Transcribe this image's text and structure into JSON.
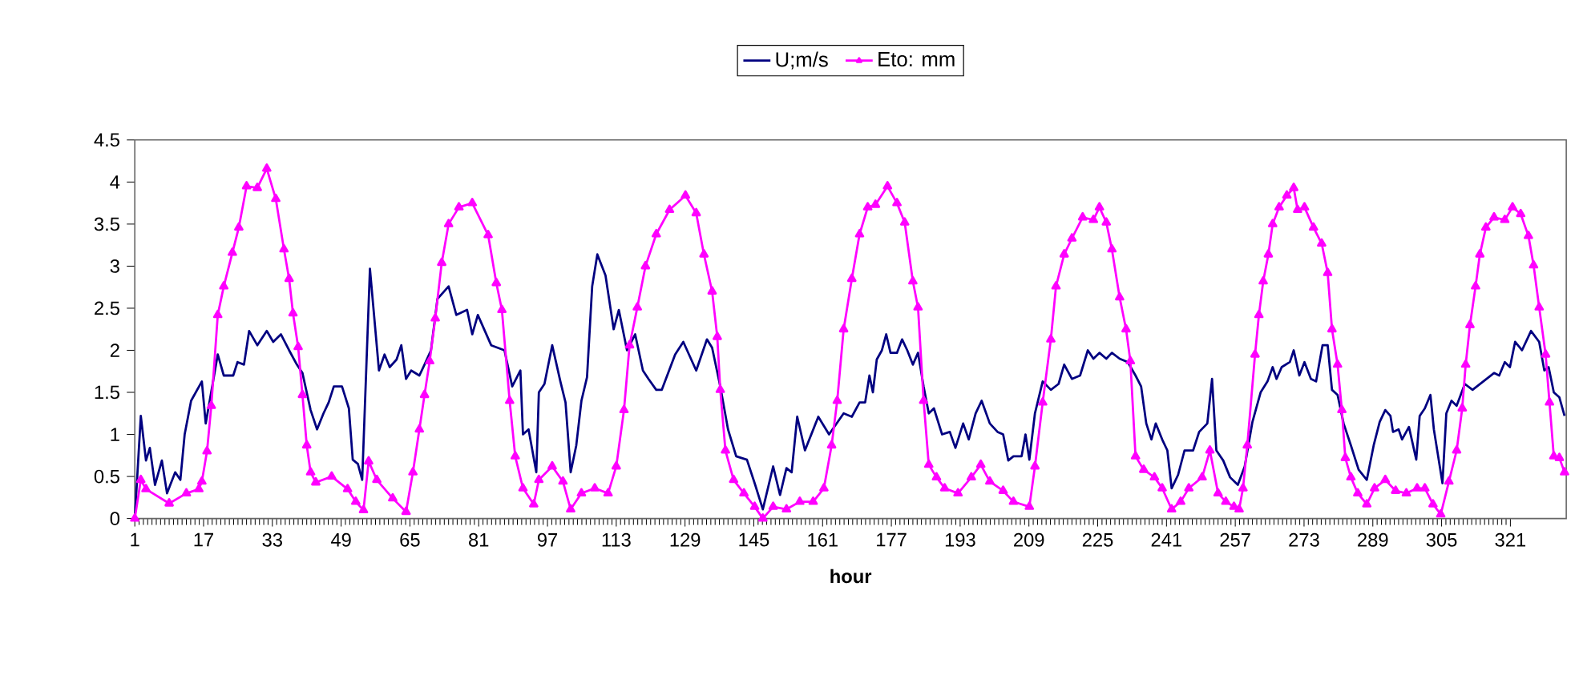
{
  "chart_data": {
    "type": "line",
    "xlabel": "hour",
    "xlim": [
      1,
      334
    ],
    "xticks": [
      1,
      17,
      33,
      49,
      65,
      81,
      97,
      113,
      129,
      145,
      161,
      177,
      193,
      209,
      225,
      241,
      257,
      273,
      289,
      305,
      321
    ],
    "ylim": [
      0,
      4.5
    ],
    "yticks": [
      0,
      0.5,
      1,
      1.5,
      2,
      2.5,
      3,
      3.5,
      4,
      4.5
    ],
    "legend": "top",
    "series": [
      {
        "name": "U;m/s",
        "color": "#000080",
        "marker": "none",
        "x": [
          1,
          2.4,
          3.6,
          4.5,
          5.7,
          7.3,
          8.5,
          10.4,
          11.6,
          12.6,
          14.1,
          16.6,
          17.5,
          20.3,
          21.7,
          23.9,
          24.9,
          26.4,
          27.6,
          29.5,
          31.7,
          33.2,
          35,
          36.9,
          38.7,
          40,
          41.9,
          43.4,
          44.9,
          46.1,
          47.3,
          49.2,
          50.8,
          51.7,
          52.9,
          53.9,
          55.7,
          57.8,
          59.1,
          60.3,
          61.9,
          63,
          64.1,
          65.3,
          67.2,
          68.4,
          69.9,
          71.4,
          74,
          75.8,
          78.3,
          79.5,
          80.8,
          83.9,
          87,
          88.8,
          90.7,
          91.3,
          92.6,
          94.4,
          95,
          96.3,
          98.1,
          100,
          101.2,
          102.4,
          103.7,
          104.9,
          106.2,
          107.4,
          108.6,
          110.5,
          112.4,
          113.6,
          115.5,
          117.4,
          119.2,
          120.5,
          122.3,
          123.6,
          126.7,
          128.6,
          131.6,
          134.1,
          135.3,
          137.2,
          139,
          140.9,
          143.4,
          145.2,
          147.1,
          149.5,
          151.1,
          152.6,
          153.8,
          155.1,
          156.9,
          160,
          162.5,
          165.9,
          167.8,
          169.6,
          170.9,
          171.9,
          172.7,
          173.6,
          174.8,
          175.8,
          176.8,
          178.3,
          179.5,
          180.7,
          182,
          183.2,
          184.5,
          185.7,
          186.9,
          188.8,
          190.6,
          191.9,
          193.7,
          195,
          196.6,
          198,
          199.9,
          201.7,
          203,
          204.2,
          205.4,
          207.3,
          208.2,
          209.1,
          210.4,
          212.2,
          214.1,
          215.9,
          217.2,
          219,
          220.9,
          222.7,
          224,
          225.4,
          227,
          228.3,
          230.1,
          232,
          233.8,
          235.1,
          236.3,
          237.5,
          238.5,
          240,
          241.2,
          242.2,
          243.7,
          245.2,
          247.2,
          248.6,
          250.5,
          251.6,
          252.6,
          254.2,
          255.8,
          257.6,
          259.2,
          261,
          262.9,
          264.5,
          265.7,
          266.6,
          267.8,
          269.7,
          270.6,
          271.9,
          273.1,
          274.6,
          275.8,
          277.3,
          278.5,
          279.5,
          280.8,
          282.2,
          283.9,
          285.7,
          287.6,
          289.2,
          290.6,
          291.9,
          293.1,
          293.7,
          295,
          295.8,
          297.4,
          299.1,
          299.9,
          301.1,
          302.4,
          303.2,
          304.2,
          305.2,
          306.1,
          307.3,
          308.5,
          310.4,
          312.2,
          314.7,
          317.2,
          318.4,
          319.7,
          320.9,
          322.1,
          323.7,
          325.8,
          327.7,
          328.9,
          329.9,
          331.1,
          332.4,
          333.6
        ],
        "values": [
          0,
          1.22,
          0.69,
          0.84,
          0.4,
          0.69,
          0.3,
          0.55,
          0.46,
          1.0,
          1.4,
          1.63,
          1.13,
          1.95,
          1.7,
          1.7,
          1.86,
          1.83,
          2.23,
          2.06,
          2.23,
          2.1,
          2.19,
          2.0,
          1.83,
          1.73,
          1.29,
          1.06,
          1.25,
          1.38,
          1.57,
          1.57,
          1.31,
          0.7,
          0.65,
          0.46,
          2.97,
          1.76,
          1.95,
          1.8,
          1.89,
          2.06,
          1.66,
          1.76,
          1.7,
          1.83,
          2.0,
          2.61,
          2.76,
          2.42,
          2.48,
          2.19,
          2.42,
          2.06,
          2.0,
          1.57,
          1.76,
          1.0,
          1.06,
          0.55,
          1.5,
          1.6,
          2.06,
          1.63,
          1.38,
          0.55,
          0.87,
          1.4,
          1.68,
          2.76,
          3.14,
          2.89,
          2.25,
          2.48,
          2.0,
          2.19,
          1.76,
          1.66,
          1.53,
          1.53,
          1.95,
          2.1,
          1.76,
          2.13,
          2.03,
          1.57,
          1.06,
          0.74,
          0.7,
          0.42,
          0.11,
          0.62,
          0.28,
          0.6,
          0.55,
          1.21,
          0.81,
          1.21,
          1.0,
          1.25,
          1.21,
          1.38,
          1.38,
          1.7,
          1.5,
          1.89,
          2.0,
          2.19,
          1.97,
          1.97,
          2.13,
          2.0,
          1.83,
          1.97,
          1.57,
          1.25,
          1.31,
          1.0,
          1.03,
          0.84,
          1.13,
          0.94,
          1.25,
          1.4,
          1.13,
          1.03,
          1.0,
          0.69,
          0.74,
          0.74,
          1.0,
          0.7,
          1.25,
          1.63,
          1.53,
          1.6,
          1.83,
          1.66,
          1.7,
          2.0,
          1.9,
          1.97,
          1.9,
          1.97,
          1.9,
          1.86,
          1.7,
          1.57,
          1.13,
          0.94,
          1.13,
          0.94,
          0.81,
          0.36,
          0.52,
          0.81,
          0.81,
          1.03,
          1.13,
          1.66,
          0.81,
          0.69,
          0.49,
          0.4,
          0.62,
          1.15,
          1.5,
          1.63,
          1.8,
          1.66,
          1.8,
          1.86,
          2.0,
          1.7,
          1.86,
          1.66,
          1.63,
          2.06,
          2.06,
          1.53,
          1.47,
          1.13,
          0.87,
          0.58,
          0.46,
          0.87,
          1.15,
          1.29,
          1.22,
          1.03,
          1.06,
          0.94,
          1.09,
          0.7,
          1.22,
          1.31,
          1.47,
          1.06,
          0.74,
          0.42,
          1.25,
          1.4,
          1.34,
          1.6,
          1.53,
          1.63,
          1.73,
          1.7,
          1.86,
          1.8,
          2.1,
          2.0,
          2.23,
          2.1,
          1.76,
          1.8,
          1.5,
          1.44,
          1.22
        ]
      },
      {
        "name": "Eto: mm",
        "color": "#ff00ff",
        "marker": "triangle",
        "x": [
          1,
          2.4,
          3.6,
          9,
          13,
          15.9,
          16.6,
          17.8,
          18.8,
          20.3,
          21.7,
          23.7,
          25.2,
          27,
          29.5,
          31.7,
          33.8,
          35.7,
          36.9,
          37.8,
          39,
          40,
          41,
          41.9,
          43.1,
          46.8,
          50.5,
          52.4,
          54.2,
          55.4,
          57.3,
          61,
          64.1,
          65.7,
          67.2,
          68.4,
          69.6,
          70.9,
          72.4,
          74,
          76.4,
          79.5,
          83.2,
          85.1,
          86.4,
          88.2,
          89.5,
          91.3,
          93.8,
          95,
          98.1,
          100.6,
          102.4,
          104.9,
          108,
          111.1,
          113,
          114.8,
          116.1,
          117.9,
          119.8,
          122.3,
          125.4,
          129.1,
          131.6,
          133.4,
          135.3,
          136.5,
          137.2,
          138.4,
          140.3,
          142.7,
          145.2,
          147.1,
          149.5,
          152.6,
          155.7,
          158.8,
          161.3,
          163.1,
          164.4,
          165.9,
          167.8,
          169.6,
          171.5,
          173.3,
          176.1,
          178.3,
          180.1,
          182,
          183.2,
          184.5,
          185.7,
          187.5,
          189.4,
          192.5,
          195.6,
          197.8,
          199.9,
          203,
          205.4,
          209.1,
          210.4,
          212.2,
          214.1,
          215.3,
          217.2,
          219,
          221.5,
          224,
          225.4,
          227,
          228.3,
          230.1,
          231.6,
          232.6,
          233.8,
          235.7,
          238.2,
          240,
          242.2,
          244.3,
          246.2,
          249.3,
          251.1,
          253,
          254.8,
          256.7,
          257.9,
          258.8,
          259.8,
          261.6,
          262.5,
          263.5,
          264.7,
          265.7,
          267.2,
          269,
          270.6,
          271.5,
          273.1,
          275.2,
          277.1,
          278.5,
          279.5,
          280.8,
          281.8,
          282.6,
          283.9,
          285.5,
          287.6,
          289.4,
          291.9,
          294.3,
          296.8,
          299.3,
          301.1,
          303,
          304.8,
          306.7,
          308.5,
          309.8,
          310.6,
          311.6,
          312.9,
          313.9,
          315.3,
          317.2,
          319.7,
          321.5,
          323.4,
          325.2,
          326.4,
          327.7,
          329.2,
          330.1,
          331.1,
          332.4,
          333.6
        ],
        "values": [
          0,
          0.46,
          0.35,
          0.18,
          0.3,
          0.35,
          0.44,
          0.8,
          1.34,
          2.42,
          2.76,
          3.16,
          3.46,
          3.95,
          3.93,
          4.16,
          3.8,
          3.2,
          2.85,
          2.44,
          2.04,
          1.47,
          0.87,
          0.55,
          0.43,
          0.5,
          0.35,
          0.2,
          0.1,
          0.68,
          0.46,
          0.24,
          0.08,
          0.55,
          1.06,
          1.47,
          1.87,
          2.38,
          3.04,
          3.5,
          3.7,
          3.75,
          3.37,
          2.8,
          2.48,
          1.4,
          0.74,
          0.36,
          0.17,
          0.46,
          0.62,
          0.44,
          0.11,
          0.3,
          0.36,
          0.3,
          0.62,
          1.29,
          2.06,
          2.51,
          3.0,
          3.38,
          3.67,
          3.84,
          3.63,
          3.14,
          2.7,
          2.16,
          1.53,
          0.81,
          0.46,
          0.3,
          0.14,
          0,
          0.14,
          0.11,
          0.2,
          0.2,
          0.36,
          0.87,
          1.4,
          2.25,
          2.85,
          3.38,
          3.7,
          3.73,
          3.95,
          3.75,
          3.52,
          2.82,
          2.51,
          1.4,
          0.64,
          0.49,
          0.36,
          0.3,
          0.49,
          0.64,
          0.44,
          0.33,
          0.2,
          0.14,
          0.62,
          1.38,
          2.13,
          2.76,
          3.14,
          3.33,
          3.58,
          3.55,
          3.7,
          3.52,
          3.2,
          2.63,
          2.25,
          1.87,
          0.74,
          0.58,
          0.49,
          0.36,
          0.11,
          0.2,
          0.36,
          0.49,
          0.81,
          0.3,
          0.2,
          0.14,
          0.11,
          0.36,
          0.87,
          1.95,
          2.42,
          2.82,
          3.14,
          3.5,
          3.7,
          3.84,
          3.93,
          3.67,
          3.7,
          3.46,
          3.27,
          2.92,
          2.25,
          1.83,
          1.29,
          0.72,
          0.49,
          0.3,
          0.17,
          0.36,
          0.46,
          0.33,
          0.3,
          0.36,
          0.36,
          0.17,
          0.05,
          0.44,
          0.81,
          1.31,
          1.83,
          2.3,
          2.76,
          3.14,
          3.46,
          3.58,
          3.55,
          3.7,
          3.62,
          3.36,
          3.01,
          2.51,
          1.95,
          1.38,
          0.74,
          0.72,
          0.55
        ]
      }
    ]
  }
}
